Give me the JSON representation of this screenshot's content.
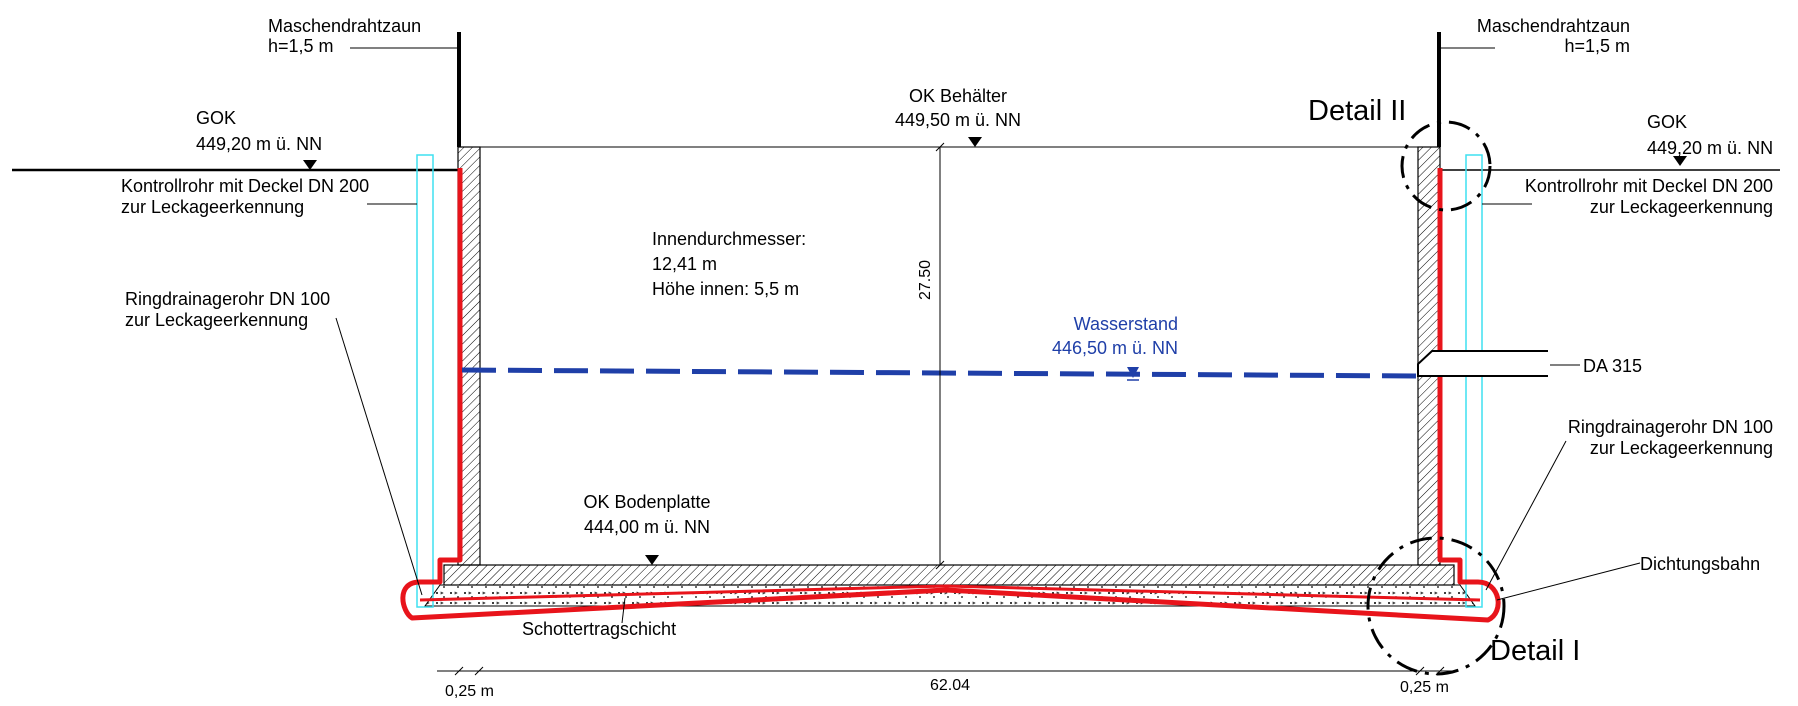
{
  "labels": {
    "fence_left_1": "Maschendrahtzaun",
    "fence_left_2": "h=1,5 m",
    "fence_right_1": "Maschendrahtzaun",
    "fence_right_2": "h=1,5 m",
    "gok_left_1": "GOK",
    "gok_left_2": "449,20 m ü. NN",
    "gok_right_1": "GOK",
    "gok_right_2": "449,20 m ü. NN",
    "ok_tank_1": "OK Behälter",
    "ok_tank_2": "449,50 m ü. NN",
    "detail_2": "Detail II",
    "detail_1": "Detail I",
    "control_left_1": "Kontrollrohr mit Deckel DN 200",
    "control_left_2": "zur Leckageerkennung",
    "control_right_1": "Kontrollrohr mit Deckel DN 200",
    "control_right_2": "zur Leckageerkennung",
    "inner_1": "Innendurchmesser:",
    "inner_2": "12,41 m",
    "inner_3": "Höhe innen: 5,5 m",
    "height_dim": "27.50",
    "water_1": "Wasserstand",
    "water_2": "446,50 m ü. NN",
    "pipe_da": "DA 315",
    "drain_left_1": "Ringdrainagerohr DN 100",
    "drain_left_2": "zur Leckageerkennung",
    "drain_right_1": "Ringdrainagerohr DN 100",
    "drain_right_2": "zur Leckageerkennung",
    "base_1": "OK Bodenplatte",
    "base_2": "444,00 m ü. NN",
    "liner": "Dichtungsbahn",
    "gravel": "Schottertragschicht",
    "dim_left": "0,25 m",
    "dim_width": "62.04",
    "dim_right": "0,25 m"
  },
  "colors": {
    "liner": "#e8141b",
    "water": "#1f3fa8",
    "control_pipe": "#3fe0f0",
    "lines": "#000000"
  }
}
